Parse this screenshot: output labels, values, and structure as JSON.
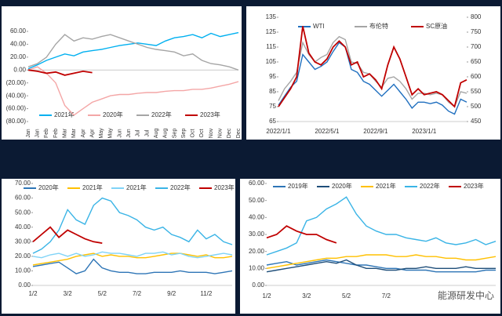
{
  "chart_data": [
    {
      "type": "line",
      "legend": "bottom",
      "categories": [
        "Jan",
        "Jan",
        "Feb",
        "Feb",
        "Mar",
        "Mar",
        "Apr",
        "Apr",
        "May",
        "May",
        "Jun",
        "Jun",
        "Jul",
        "Jul",
        "Aug",
        "Aug",
        "Sep",
        "Sep",
        "Oct",
        "Oct",
        "Nov",
        "Nov",
        "Dec",
        "Dec"
      ],
      "ylim": [
        -80,
        60
      ],
      "yticks": [
        {
          "value": 60,
          "label": "60.00"
        },
        {
          "value": 40,
          "label": "40.00"
        },
        {
          "value": 20,
          "label": "20.00"
        },
        {
          "value": 0,
          "label": "0.00"
        },
        {
          "value": -20,
          "label": "(20.00)"
        },
        {
          "value": -40,
          "label": "(40.00)"
        },
        {
          "value": -60,
          "label": "(60.00)"
        },
        {
          "value": -80,
          "label": "(80.00)"
        }
      ],
      "series": [
        {
          "name": "2021年",
          "color": "#00b0f0",
          "values": [
            2,
            8,
            15,
            20,
            25,
            22,
            28,
            30,
            32,
            35,
            38,
            40,
            42,
            40,
            38,
            45,
            50,
            52,
            55,
            50,
            57,
            52,
            55,
            58
          ]
        },
        {
          "name": "2020年",
          "color": "#f4a6a6",
          "values": [
            0,
            5,
            -5,
            -20,
            -55,
            -70,
            -60,
            -50,
            -45,
            -40,
            -38,
            -38,
            -36,
            -35,
            -35,
            -33,
            -32,
            -32,
            -30,
            -30,
            -28,
            -25,
            -22,
            -18
          ]
        },
        {
          "name": "2022年",
          "color": "#a5a5a5",
          "values": [
            5,
            10,
            20,
            40,
            55,
            45,
            50,
            48,
            52,
            55,
            50,
            45,
            40,
            35,
            32,
            30,
            28,
            22,
            25,
            15,
            10,
            8,
            5,
            0
          ]
        },
        {
          "name": "2023年",
          "color": "#c00000",
          "values": [
            0,
            -2,
            -5,
            -3,
            -8,
            -5,
            -2,
            -4,
            null,
            null,
            null,
            null,
            null,
            null,
            null,
            null,
            null,
            null,
            null,
            null,
            null,
            null,
            null,
            null
          ]
        }
      ]
    },
    {
      "type": "line",
      "legend": "top",
      "categories": [
        "2022/1/1",
        null,
        null,
        null,
        null,
        null,
        null,
        null,
        "2022/5/1",
        null,
        null,
        null,
        null,
        null,
        null,
        null,
        "2022/9/1",
        null,
        null,
        null,
        null,
        null,
        null,
        null,
        "2023/1/1",
        null,
        null,
        null,
        null,
        null,
        null,
        null
      ],
      "ylim": [
        65,
        135
      ],
      "yticks": [
        65,
        75,
        85,
        95,
        105,
        115,
        125,
        135
      ],
      "y2lim": [
        450,
        800
      ],
      "y2ticks": [
        450,
        500,
        550,
        600,
        650,
        700,
        750,
        800
      ],
      "series": [
        {
          "name": "WTI",
          "color": "#1f6fbf",
          "values": [
            76,
            82,
            88,
            92,
            110,
            105,
            100,
            102,
            105,
            112,
            118,
            115,
            100,
            98,
            92,
            90,
            86,
            82,
            86,
            90,
            85,
            80,
            74,
            78,
            78,
            77,
            78,
            76,
            72,
            70,
            80,
            78
          ]
        },
        {
          "name": "布伦特",
          "color": "#a5a5a5",
          "values": [
            79,
            87,
            92,
            98,
            118,
            110,
            105,
            108,
            110,
            118,
            122,
            120,
            105,
            104,
            98,
            97,
            92,
            88,
            94,
            95,
            92,
            87,
            80,
            84,
            84,
            83,
            84,
            83,
            78,
            75,
            85,
            84
          ]
        },
        {
          "name": "SC原油",
          "color": "#c00000",
          "axis": "y2",
          "values": [
            500,
            530,
            560,
            600,
            770,
            680,
            650,
            640,
            660,
            700,
            720,
            700,
            640,
            650,
            600,
            610,
            590,
            560,
            640,
            700,
            660,
            600,
            540,
            560,
            540,
            545,
            550,
            540,
            520,
            500,
            580,
            590
          ]
        }
      ]
    },
    {
      "type": "line",
      "legend": "top",
      "categories": [
        "1/2",
        null,
        null,
        null,
        "3/2",
        null,
        null,
        null,
        "5/2",
        null,
        null,
        null,
        "7/2",
        null,
        null,
        null,
        "9/2",
        null,
        null,
        null,
        "11/2",
        null,
        null,
        null
      ],
      "ylim": [
        0,
        70
      ],
      "yticks": [
        {
          "value": 0,
          "label": "0.00"
        },
        {
          "value": 10,
          "label": "10.00"
        },
        {
          "value": 20,
          "label": "20.00"
        },
        {
          "value": 30,
          "label": "30.00"
        },
        {
          "value": 40,
          "label": "40.00"
        },
        {
          "value": 50,
          "label": "50.00"
        },
        {
          "value": 60,
          "label": "60.00"
        },
        {
          "value": 70,
          "label": "70.00"
        }
      ],
      "series": [
        {
          "name": "2020年",
          "color": "#2e75b6",
          "values": [
            13,
            14,
            15,
            16,
            12,
            8,
            10,
            18,
            12,
            10,
            9,
            9,
            8,
            8,
            9,
            9,
            9,
            10,
            9,
            9,
            9,
            8,
            9,
            10
          ]
        },
        {
          "name": "2021年",
          "color": "#ffc000",
          "values": [
            14,
            15,
            16,
            17,
            18,
            20,
            21,
            22,
            20,
            21,
            20,
            20,
            19,
            19,
            20,
            21,
            22,
            22,
            21,
            20,
            21,
            19,
            19,
            20
          ]
        },
        {
          "name": "2021年",
          "color": "#7fd3f7",
          "values": [
            20,
            19,
            21,
            22,
            20,
            22,
            20,
            21,
            23,
            22,
            22,
            21,
            20,
            22,
            22,
            23,
            21,
            22,
            20,
            19,
            20,
            21,
            22,
            21
          ]
        },
        {
          "name": "2022年",
          "color": "#3ab4e6",
          "values": [
            22,
            25,
            30,
            38,
            52,
            45,
            42,
            55,
            60,
            58,
            50,
            48,
            45,
            40,
            38,
            40,
            35,
            33,
            30,
            38,
            32,
            35,
            30,
            28
          ]
        },
        {
          "name": "2023年",
          "color": "#c00000",
          "values": [
            30,
            35,
            40,
            33,
            38,
            35,
            32,
            30,
            29,
            null,
            null,
            null,
            null,
            null,
            null,
            null,
            null,
            null,
            null,
            null,
            null,
            null,
            null,
            null
          ]
        }
      ]
    },
    {
      "type": "line",
      "legend": "top",
      "annotation": "能源研发中心",
      "categories": [
        "1/2",
        null,
        null,
        null,
        "3/2",
        null,
        null,
        null,
        "5/2",
        null,
        null,
        null,
        "7/2",
        null,
        null,
        null,
        null,
        null,
        null,
        null,
        null,
        null,
        null,
        null
      ],
      "ylim": [
        0,
        60
      ],
      "yticks": [
        {
          "value": 0,
          "label": "0.00"
        },
        {
          "value": 10,
          "label": "10.00"
        },
        {
          "value": 20,
          "label": "20.00"
        },
        {
          "value": 30,
          "label": "30.00"
        },
        {
          "value": 40,
          "label": "40.00"
        },
        {
          "value": 50,
          "label": "50.00"
        },
        {
          "value": 60,
          "label": "60.00"
        }
      ],
      "series": [
        {
          "name": "2019年",
          "color": "#2e75b6",
          "values": [
            12,
            13,
            14,
            12,
            13,
            14,
            15,
            14,
            13,
            12,
            12,
            11,
            10,
            10,
            9,
            9,
            9,
            8,
            8,
            8,
            8,
            8,
            9,
            9
          ]
        },
        {
          "name": "2020年",
          "color": "#1f4e79",
          "values": [
            8,
            9,
            10,
            11,
            12,
            13,
            14,
            13,
            15,
            12,
            10,
            10,
            9,
            9,
            10,
            10,
            11,
            10,
            10,
            10,
            11,
            10,
            10,
            10
          ]
        },
        {
          "name": "2021年",
          "color": "#ffc000",
          "values": [
            10,
            11,
            12,
            13,
            14,
            15,
            16,
            16,
            17,
            17,
            18,
            18,
            18,
            17,
            17,
            18,
            17,
            17,
            16,
            16,
            15,
            15,
            16,
            17
          ]
        },
        {
          "name": "2022年",
          "color": "#3ab4e6",
          "values": [
            18,
            20,
            22,
            25,
            38,
            40,
            45,
            48,
            52,
            42,
            35,
            32,
            30,
            30,
            28,
            27,
            26,
            28,
            25,
            24,
            25,
            27,
            24,
            26
          ]
        },
        {
          "name": "2023年",
          "color": "#c00000",
          "values": [
            28,
            30,
            35,
            32,
            30,
            30,
            27,
            25,
            null,
            null,
            null,
            null,
            null,
            null,
            null,
            null,
            null,
            null,
            null,
            null,
            null,
            null,
            null,
            null
          ]
        }
      ]
    }
  ]
}
